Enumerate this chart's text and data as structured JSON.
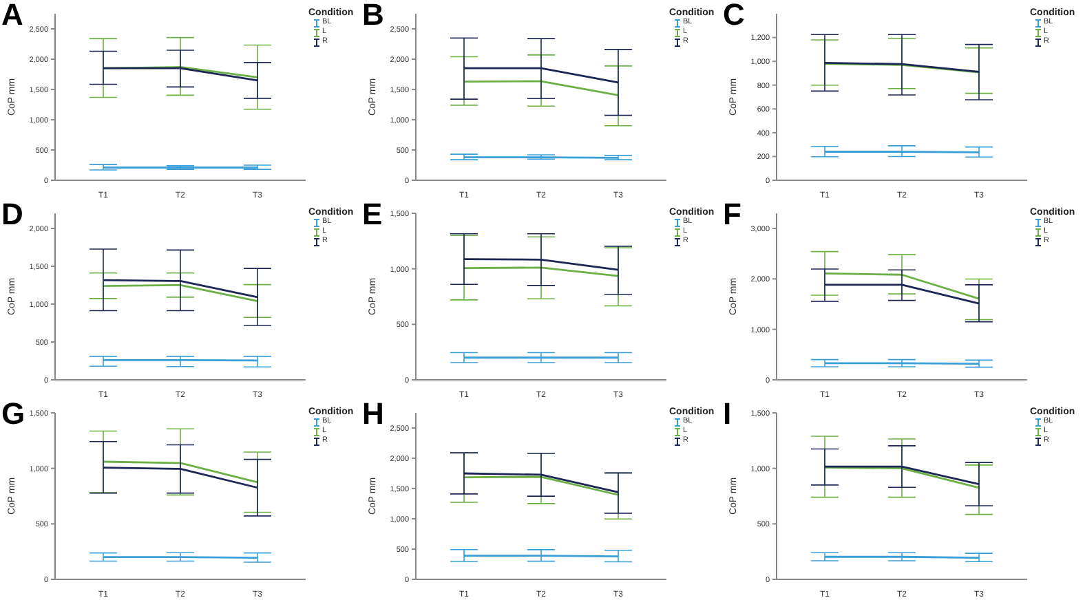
{
  "chart_data": [
    {
      "type": "line",
      "title": "A",
      "ylabel": "CoP mm",
      "legend_title": "Condition",
      "legend": "top right",
      "marker": "none",
      "categories": [
        "T1",
        "T2",
        "T3"
      ],
      "ylim": [
        0,
        2750
      ],
      "yticks": [
        0,
        500,
        {
          "value": 1000,
          "label": "1,000"
        },
        {
          "value": 1500,
          "label": "1,500"
        },
        {
          "value": 2000,
          "label": "2,000"
        },
        {
          "value": 2500,
          "label": "2,500"
        }
      ],
      "series": [
        {
          "name": "BL",
          "color": "#3a9fd9",
          "values": [
            210,
            210,
            210
          ],
          "errors": [
            [
              170,
              260
            ],
            [
              180,
              240
            ],
            [
              180,
              250
            ]
          ]
        },
        {
          "name": "L",
          "color": "#6cb045",
          "values": [
            1850,
            1870,
            1700
          ],
          "errors": [
            [
              1370,
              2340
            ],
            [
              1405,
              2356
            ],
            [
              1174,
              2233
            ]
          ]
        },
        {
          "name": "R",
          "color": "#1c2755",
          "values": [
            1850,
            1850,
            1650
          ],
          "errors": [
            [
              1585,
              2130
            ],
            [
              1541,
              2147
            ],
            [
              1354,
              1945
            ]
          ]
        }
      ]
    },
    {
      "type": "line",
      "title": "B",
      "ylabel": "CoP mm",
      "legend_title": "Condition",
      "legend": "top right",
      "marker": "none",
      "categories": [
        "T1",
        "T2",
        "T3"
      ],
      "ylim": [
        0,
        2750
      ],
      "yticks": [
        0,
        500,
        {
          "value": 1000,
          "label": "1,000"
        },
        {
          "value": 1500,
          "label": "1,500"
        },
        {
          "value": 2000,
          "label": "2,000"
        },
        {
          "value": 2500,
          "label": "2,500"
        }
      ],
      "series": [
        {
          "name": "BL",
          "color": "#3a9fd9",
          "values": [
            380,
            380,
            370
          ],
          "errors": [
            [
              340,
              430
            ],
            [
              350,
              420
            ],
            [
              340,
              410
            ]
          ]
        },
        {
          "name": "L",
          "color": "#6cb045",
          "values": [
            1630,
            1635,
            1405
          ],
          "errors": [
            [
              1240,
              2040
            ],
            [
              1225,
              2070
            ],
            [
              900,
              1888
            ]
          ]
        },
        {
          "name": "R",
          "color": "#1c2755",
          "values": [
            1850,
            1850,
            1614
          ],
          "errors": [
            [
              1340,
              2350
            ],
            [
              1350,
              2340
            ],
            [
              1073,
              2160
            ]
          ]
        }
      ]
    },
    {
      "type": "line",
      "title": "C",
      "ylabel": "CoP mm",
      "legend_title": "Condition",
      "legend": "top right",
      "marker": "none",
      "categories": [
        "T1",
        "T2",
        "T3"
      ],
      "ylim": [
        0,
        1400
      ],
      "yticks": [
        0,
        200,
        400,
        600,
        800,
        {
          "value": 1000,
          "label": "1,000"
        },
        {
          "value": 1200,
          "label": "1,200"
        }
      ],
      "series": [
        {
          "name": "BL",
          "color": "#3a9fd9",
          "values": [
            240,
            240,
            235
          ],
          "errors": [
            [
              198,
              285
            ],
            [
              200,
              290
            ],
            [
              195,
              280
            ]
          ]
        },
        {
          "name": "L",
          "color": "#6cb045",
          "values": [
            980,
            970,
            908
          ],
          "errors": [
            [
              800,
              1180
            ],
            [
              771,
              1193
            ],
            [
              731,
              1113
            ]
          ]
        },
        {
          "name": "R",
          "color": "#1c2755",
          "values": [
            987,
            977,
            912
          ],
          "errors": [
            [
              750,
              1225
            ],
            [
              717,
              1225
            ],
            [
              677,
              1142
            ]
          ]
        }
      ]
    },
    {
      "type": "line",
      "title": "D",
      "ylabel": "CoP mm",
      "legend_title": "Condition",
      "legend": "top right",
      "marker": "none",
      "categories": [
        "T1",
        "T2",
        "T3"
      ],
      "ylim": [
        0,
        2200
      ],
      "yticks": [
        0,
        500,
        {
          "value": 1000,
          "label": "1,000"
        },
        {
          "value": 1500,
          "label": "1,500"
        },
        {
          "value": 2000,
          "label": "2,000"
        }
      ],
      "series": [
        {
          "name": "BL",
          "color": "#3a9fd9",
          "values": [
            260,
            260,
            255
          ],
          "errors": [
            [
              180,
              310
            ],
            [
              175,
              310
            ],
            [
              170,
              310
            ]
          ]
        },
        {
          "name": "L",
          "color": "#6cb045",
          "values": [
            1240,
            1252,
            1039
          ],
          "errors": [
            [
              1074,
              1412
            ],
            [
              1092,
              1412
            ],
            [
              825,
              1258
            ]
          ]
        },
        {
          "name": "R",
          "color": "#1c2755",
          "values": [
            1317,
            1306,
            1092
          ],
          "errors": [
            [
              914,
              1727
            ],
            [
              914,
              1715
            ],
            [
              718,
              1472
            ]
          ]
        }
      ]
    },
    {
      "type": "line",
      "title": "E",
      "ylabel": "CoP mm",
      "legend_title": "Condition",
      "legend": "top right",
      "marker": "none",
      "categories": [
        "T1",
        "T2",
        "T3"
      ],
      "ylim": [
        0,
        1500
      ],
      "yticks": [
        0,
        500,
        {
          "value": 1000,
          "label": "1,000"
        },
        {
          "value": 1500,
          "label": "1,500"
        }
      ],
      "series": [
        {
          "name": "BL",
          "color": "#3a9fd9",
          "values": [
            200,
            200,
            200
          ],
          "errors": [
            [
              155,
              245
            ],
            [
              155,
              245
            ],
            [
              155,
              245
            ]
          ]
        },
        {
          "name": "L",
          "color": "#6cb045",
          "values": [
            1007,
            1011,
            935
          ],
          "errors": [
            [
              720,
              1300
            ],
            [
              730,
              1288
            ],
            [
              666,
              1190
            ]
          ]
        },
        {
          "name": "R",
          "color": "#1c2755",
          "values": [
            1087,
            1083,
            991
          ],
          "errors": [
            [
              860,
              1316
            ],
            [
              850,
              1316
            ],
            [
              770,
              1203
            ]
          ]
        }
      ]
    },
    {
      "type": "line",
      "title": "F",
      "ylabel": "CoP mm",
      "legend_title": "Condition",
      "legend": "top right",
      "marker": "none",
      "categories": [
        "T1",
        "T2",
        "T3"
      ],
      "ylim": [
        0,
        3300
      ],
      "yticks": [
        0,
        {
          "value": 1000,
          "label": "1,000"
        },
        {
          "value": 2000,
          "label": "2,000"
        },
        {
          "value": 3000,
          "label": "3,000"
        }
      ],
      "series": [
        {
          "name": "BL",
          "color": "#3a9fd9",
          "values": [
            330,
            330,
            320
          ],
          "errors": [
            [
              260,
              400
            ],
            [
              260,
              400
            ],
            [
              250,
              390
            ]
          ]
        },
        {
          "name": "L",
          "color": "#6cb045",
          "values": [
            2109,
            2083,
            1608
          ],
          "errors": [
            [
              1677,
              2541
            ],
            [
              1703,
              2480
            ],
            [
              1193,
              1997
            ]
          ]
        },
        {
          "name": "R",
          "color": "#1c2755",
          "values": [
            1884,
            1884,
            1513
          ],
          "errors": [
            [
              1556,
              2195
            ],
            [
              1573,
              2178
            ],
            [
              1150,
              1884
            ]
          ]
        }
      ]
    },
    {
      "type": "line",
      "title": "G",
      "ylabel": "CoP mm",
      "legend_title": "Condition",
      "legend": "top right",
      "marker": "none",
      "categories": [
        "T1",
        "T2",
        "T3"
      ],
      "ylim": [
        0,
        1500
      ],
      "yticks": [
        0,
        500,
        {
          "value": 1000,
          "label": "1,000"
        },
        {
          "value": 1500,
          "label": "1,500"
        }
      ],
      "series": [
        {
          "name": "BL",
          "color": "#3a9fd9",
          "values": [
            201,
            201,
            195
          ],
          "errors": [
            [
              164,
              238
            ],
            [
              164,
              240
            ],
            [
              155,
              238
            ]
          ]
        },
        {
          "name": "L",
          "color": "#6cb045",
          "values": [
            1060,
            1048,
            875
          ],
          "errors": [
            [
              780,
              1336
            ],
            [
              760,
              1356
            ],
            [
              604,
              1147
            ]
          ]
        },
        {
          "name": "R",
          "color": "#1c2755",
          "values": [
            1007,
            995,
            826
          ],
          "errors": [
            [
              777,
              1241
            ],
            [
              777,
              1212
            ],
            [
              571,
              1081
            ]
          ]
        }
      ]
    },
    {
      "type": "line",
      "title": "H",
      "ylabel": "CoP mm",
      "legend_title": "Condition",
      "legend": "top right",
      "marker": "none",
      "categories": [
        "T1",
        "T2",
        "T3"
      ],
      "ylim": [
        0,
        2750
      ],
      "yticks": [
        0,
        500,
        {
          "value": 1000,
          "label": "1,000"
        },
        {
          "value": 1500,
          "label": "1,500"
        },
        {
          "value": 2000,
          "label": "2,000"
        },
        {
          "value": 2500,
          "label": "2,500"
        }
      ],
      "series": [
        {
          "name": "BL",
          "color": "#3a9fd9",
          "values": [
            390,
            390,
            380
          ],
          "errors": [
            [
              296,
              491
            ],
            [
              300,
              490
            ],
            [
              290,
              480
            ]
          ]
        },
        {
          "name": "L",
          "color": "#6cb045",
          "values": [
            1685,
            1692,
            1395
          ],
          "errors": [
            [
              1273,
              2090
            ],
            [
              1251,
              2082
            ],
            [
              998,
              1757
            ]
          ]
        },
        {
          "name": "R",
          "color": "#1c2755",
          "values": [
            1750,
            1728,
            1439
          ],
          "errors": [
            [
              1410,
              2090
            ],
            [
              1374,
              2082
            ],
            [
              1092,
              1757
            ]
          ]
        }
      ]
    },
    {
      "type": "line",
      "title": "I",
      "ylabel": "CoP mm",
      "legend_title": "Condition",
      "legend": "top right",
      "marker": "none",
      "categories": [
        "T1",
        "T2",
        "T3"
      ],
      "ylim": [
        0,
        1500
      ],
      "yticks": [
        0,
        500,
        {
          "value": 1000,
          "label": "1,000"
        },
        {
          "value": 1500,
          "label": "1,500"
        }
      ],
      "series": [
        {
          "name": "BL",
          "color": "#3a9fd9",
          "values": [
            203,
            203,
            195
          ],
          "errors": [
            [
              167,
              240
            ],
            [
              167,
              240
            ],
            [
              160,
              235
            ]
          ]
        },
        {
          "name": "L",
          "color": "#6cb045",
          "values": [
            1008,
            1000,
            825
          ],
          "errors": [
            [
              740,
              1289
            ],
            [
              740,
              1264
            ],
            [
              585,
              1030
            ]
          ]
        },
        {
          "name": "R",
          "color": "#1c2755",
          "values": [
            1016,
            1016,
            858
          ],
          "errors": [
            [
              850,
              1175
            ],
            [
              829,
              1203
            ],
            [
              663,
              1053
            ]
          ]
        }
      ]
    }
  ]
}
